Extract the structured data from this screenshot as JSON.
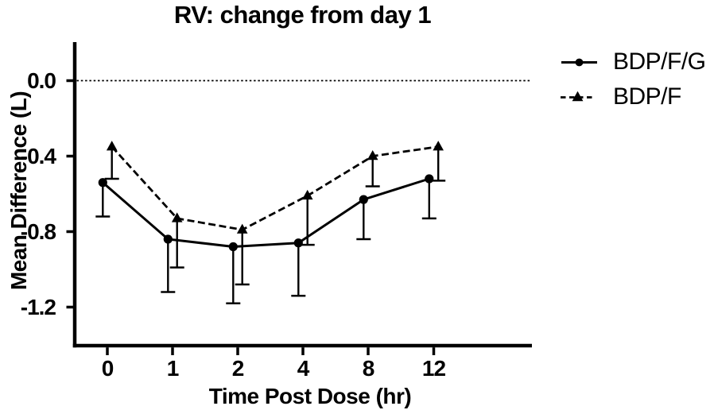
{
  "title": "RV: change from day 1",
  "legend": {
    "items": [
      {
        "label": "BDP/F/G",
        "marker": "circle",
        "line": "solid"
      },
      {
        "label": "BDP/F",
        "marker": "triangle",
        "line": "dashed"
      }
    ]
  },
  "colors": {
    "foreground": "#000000",
    "background": "#ffffff"
  },
  "chart_data": {
    "type": "line",
    "title": "RV: change from day 1",
    "xlabel": "Time Post Dose (hr)",
    "ylabel": "Mean Difference (L)",
    "categories": [
      "0",
      "1",
      "2",
      "4",
      "8",
      "12"
    ],
    "ytick_labels": [
      "0.0",
      "-0.4",
      "-0.8",
      "-1.2"
    ],
    "yticks": [
      0.0,
      -0.4,
      -0.8,
      -1.2
    ],
    "ylim": [
      -1.4,
      0.2
    ],
    "reference_line_y": 0.0,
    "reference_line_style": "dotted",
    "error_bars": "lower-only, capped",
    "grid": false,
    "legend_position": "right-top",
    "series": [
      {
        "name": "BDP/F/G",
        "marker": "circle",
        "line_style": "solid",
        "values": [
          -0.54,
          -0.84,
          -0.88,
          -0.86,
          -0.63,
          -0.52
        ],
        "errors_lower": [
          0.18,
          0.28,
          0.3,
          0.28,
          0.21,
          0.21
        ]
      },
      {
        "name": "BDP/F",
        "marker": "triangle",
        "line_style": "dashed",
        "values": [
          -0.35,
          -0.73,
          -0.79,
          -0.61,
          -0.4,
          -0.35
        ],
        "errors_lower": [
          0.17,
          0.26,
          0.29,
          0.26,
          0.16,
          0.18
        ]
      }
    ]
  }
}
